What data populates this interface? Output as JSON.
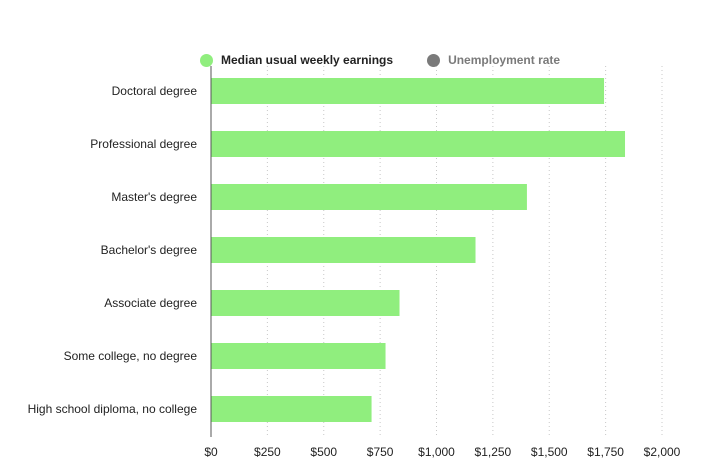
{
  "legend": {
    "items": [
      {
        "label": "Median usual weekly earnings",
        "color": "#90ee7e",
        "active": true
      },
      {
        "label": "Unemployment rate",
        "color": "#7a7a7a",
        "active": false
      }
    ]
  },
  "chart_data": {
    "type": "bar",
    "orientation": "horizontal",
    "categories": [
      "Doctoral degree",
      "Professional degree",
      "Master's degree",
      "Bachelor's degree",
      "Associate degree",
      "Some college, no degree",
      "High school diploma, no college"
    ],
    "series": [
      {
        "name": "Median usual weekly earnings",
        "values": [
          1743,
          1836,
          1401,
          1173,
          836,
          774,
          712
        ],
        "color": "#90ee7e"
      }
    ],
    "x_ticks": [
      "$0",
      "$250",
      "$500",
      "$750",
      "$1,000",
      "$1,250",
      "$1,500",
      "$1,750",
      "$2,000"
    ],
    "xlim": [
      0,
      2000
    ],
    "grid": "vertical-dotted",
    "legend_position": "top"
  }
}
